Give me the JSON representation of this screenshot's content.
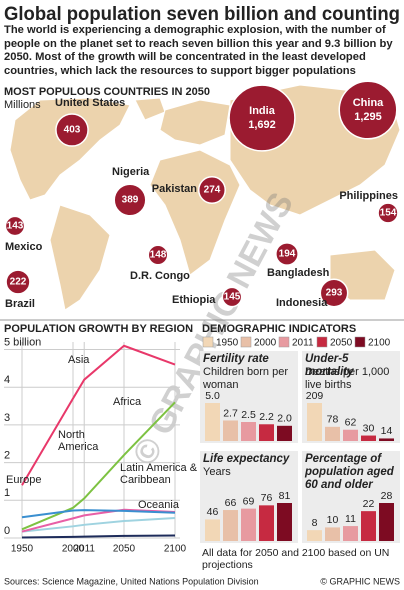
{
  "header": {
    "title": "Global population seven billion and counting",
    "intro": "The world is experiencing a demographic explosion, with the number of people on the planet set to reach seven billion this year and 9.3 billion by 2050. Most of the growth will be concentrated in the least developed countries, which lack the resources to support bigger populations"
  },
  "watermark": "© GRAPHIC NEWS",
  "chart_data": [
    {
      "type": "bubble-map",
      "title": "MOST POPULOUS COUNTRIES IN 2050",
      "subtitle": "Millions",
      "categories": [
        "United States",
        "India",
        "China",
        "Nigeria",
        "Pakistan",
        "Philippines",
        "Mexico",
        "D.R. Congo",
        "Bangladesh",
        "Brazil",
        "Ethiopia",
        "Indonesia"
      ],
      "values": [
        403,
        1692,
        1295,
        389,
        274,
        154,
        143,
        148,
        194,
        222,
        145,
        293
      ],
      "value_labels": [
        "403",
        "1,692",
        "1,295",
        "389",
        "274",
        "154",
        "143",
        "148",
        "194",
        "222",
        "145",
        "293"
      ],
      "color": "#9b1b30"
    },
    {
      "type": "line",
      "title": "POPULATION GROWTH BY REGION",
      "x": [
        1950,
        2000,
        2011,
        2050,
        2100
      ],
      "xlim": [
        1950,
        2100
      ],
      "xticks": [
        1950,
        2000,
        2011,
        2050,
        2100
      ],
      "ylim": [
        0,
        5.2
      ],
      "yticks": [
        0,
        1,
        2,
        3,
        4,
        {
          "value": 5,
          "label": "5 billion"
        }
      ],
      "grid": true,
      "series": [
        {
          "name": "Asia",
          "color": "#e8386a",
          "values": [
            1.4,
            3.7,
            4.2,
            5.1,
            4.6
          ]
        },
        {
          "name": "Africa",
          "color": "#7dc242",
          "values": [
            0.23,
            0.8,
            1.05,
            2.2,
            3.6
          ]
        },
        {
          "name": "North America",
          "color": "#9fd3e0",
          "values": [
            0.17,
            0.31,
            0.35,
            0.45,
            0.53
          ]
        },
        {
          "name": "Latin America & Caribbean",
          "color": "#e85fa6",
          "values": [
            0.17,
            0.52,
            0.6,
            0.75,
            0.69
          ]
        },
        {
          "name": "Europe",
          "color": "#3a8fd0",
          "values": [
            0.55,
            0.73,
            0.74,
            0.72,
            0.67
          ]
        },
        {
          "name": "Oceania",
          "color": "#1d2b5a",
          "values": [
            0.013,
            0.03,
            0.037,
            0.055,
            0.066
          ]
        }
      ]
    },
    {
      "type": "bar-panels",
      "title": "DEMOGRAPHIC INDICATORS",
      "categories": [
        "1950",
        "2000",
        "2011",
        "2050",
        "2100"
      ],
      "colors": [
        "#f2d7b6",
        "#e8c0a8",
        "#e79aa0",
        "#c62a41",
        "#7d0b22"
      ],
      "panels": [
        {
          "title": "Fertility rate",
          "subtitle": "Children born per woman",
          "values": [
            5.0,
            2.7,
            2.5,
            2.2,
            2.0
          ],
          "value_labels": [
            "5.0",
            "2.7",
            "2.5",
            "2.2",
            "2.0"
          ]
        },
        {
          "title": "Under-5 mortality",
          "subtitle": "Deaths per 1,000 live births",
          "values": [
            209,
            78,
            62,
            30,
            14
          ]
        },
        {
          "title": "Life expectancy",
          "subtitle": "Years",
          "values": [
            46,
            66,
            69,
            76,
            81
          ]
        },
        {
          "title": "Percentage of population aged 60 and older",
          "values": [
            8,
            10,
            11,
            22,
            28
          ]
        }
      ],
      "note": "All data for 2050 and 2100 based on UN projections"
    }
  ],
  "footer": {
    "source": "Sources: Science Magazine, United Nations Population Division",
    "credit": "© GRAPHIC NEWS"
  }
}
